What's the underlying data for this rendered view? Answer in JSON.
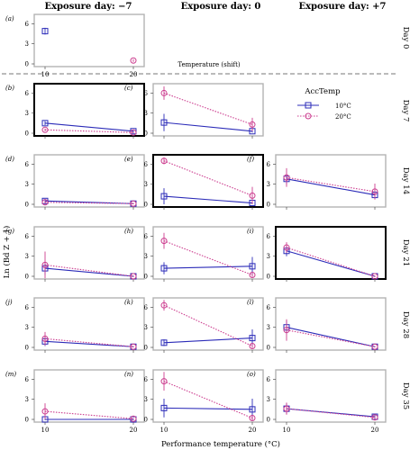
{
  "headers": [
    "Exposure day: −7",
    "Exposure day: 0",
    "Exposure day: +7"
  ],
  "day_labels": [
    "Day 0",
    "Day 7",
    "Day 14",
    "Day 21",
    "Day 28",
    "Day 35"
  ],
  "y_axis_label": "Ln (Bd Z + 1)",
  "x_axis_label": "Performance temperature (°C)",
  "day0_axis_label": "Temperature (shift)",
  "legend": {
    "title": "AccTemp",
    "entries": [
      {
        "name": "10°C",
        "color": "#2b2bb8",
        "marker": "square",
        "line": "solid"
      },
      {
        "name": "20°C",
        "color": "#cc3d8f",
        "marker": "circle",
        "line": "dotted"
      }
    ]
  },
  "colors": {
    "blue": "#2b2bb8",
    "magenta": "#cc3d8f",
    "frame_grey": "#b3b3b3",
    "frame_black": "#000000"
  },
  "chart_data": [
    {
      "panel": "a",
      "label": "(a)",
      "row": "Day 0",
      "col": "Exposure day: −7",
      "type": "scatter",
      "x_categories": [
        "10",
        "20"
      ],
      "yticks": [
        0,
        3,
        6
      ],
      "ylim": [
        0,
        7
      ],
      "frame": "grey",
      "series": [
        {
          "name": "10°C",
          "points": [
            [
              10,
              4.9,
              0.5
            ]
          ]
        },
        {
          "name": "20°C",
          "points": [
            [
              20,
              0.5,
              0.2
            ]
          ]
        }
      ]
    },
    {
      "panel": "b",
      "label": "(b)",
      "row": "Day 7",
      "col": "Exposure day: −7",
      "type": "line",
      "x": [
        10,
        20
      ],
      "yticks": [
        0,
        3,
        6
      ],
      "ylim": [
        0,
        7
      ],
      "frame": "black",
      "series": [
        {
          "name": "10°C",
          "y": [
            1.5,
            0.3
          ],
          "err": [
            0.3,
            0.1
          ]
        },
        {
          "name": "20°C",
          "y": [
            0.5,
            0.1
          ],
          "err": [
            0.2,
            0.1
          ]
        }
      ]
    },
    {
      "panel": "c",
      "label": "(c)",
      "row": "Day 7",
      "col": "Exposure day: 0",
      "type": "line",
      "x": [
        10,
        20
      ],
      "yticks": [
        0,
        3,
        6
      ],
      "ylim": [
        0,
        7
      ],
      "frame": "grey",
      "series": [
        {
          "name": "10°C",
          "y": [
            1.6,
            0.3
          ],
          "err": [
            1.3,
            0.2
          ]
        },
        {
          "name": "20°C",
          "y": [
            6.0,
            1.3
          ],
          "err": [
            1.0,
            1.0
          ]
        }
      ]
    },
    {
      "panel": "d",
      "label": "(d)",
      "row": "Day 14",
      "col": "Exposure day: −7",
      "type": "line",
      "x": [
        10,
        20
      ],
      "yticks": [
        0,
        3,
        6
      ],
      "ylim": [
        0,
        7
      ],
      "frame": "grey",
      "series": [
        {
          "name": "10°C",
          "y": [
            0.5,
            0.1
          ],
          "err": [
            0.3,
            0.1
          ]
        },
        {
          "name": "20°C",
          "y": [
            0.3,
            0.1
          ],
          "err": [
            0.2,
            0.1
          ]
        }
      ]
    },
    {
      "panel": "e",
      "label": "(e)",
      "row": "Day 14",
      "col": "Exposure day: 0",
      "type": "line",
      "x": [
        10,
        20
      ],
      "yticks": [
        0,
        3,
        6
      ],
      "ylim": [
        0,
        7
      ],
      "frame": "black",
      "series": [
        {
          "name": "10°C",
          "y": [
            1.2,
            0.2
          ],
          "err": [
            1.2,
            0.2
          ]
        },
        {
          "name": "20°C",
          "y": [
            6.5,
            1.3
          ],
          "err": [
            0.5,
            1.3
          ]
        }
      ]
    },
    {
      "panel": "f",
      "label": "(f)",
      "row": "Day 14",
      "col": "Exposure day: +7",
      "type": "line",
      "x": [
        10,
        20
      ],
      "yticks": [
        0,
        3,
        6
      ],
      "ylim": [
        0,
        7
      ],
      "frame": "grey",
      "series": [
        {
          "name": "10°C",
          "y": [
            3.8,
            1.4
          ],
          "err": [
            0.8,
            0.6
          ]
        },
        {
          "name": "20°C",
          "y": [
            4.0,
            1.9
          ],
          "err": [
            1.4,
            1.2
          ]
        }
      ]
    },
    {
      "panel": "g",
      "label": "(g)",
      "row": "Day 21",
      "col": "Exposure day: −7",
      "type": "line",
      "x": [
        10,
        20
      ],
      "yticks": [
        0,
        3,
        6
      ],
      "ylim": [
        0,
        7
      ],
      "frame": "grey",
      "series": [
        {
          "name": "10°C",
          "y": [
            1.2,
            0.0
          ],
          "err": [
            1.0,
            0.1
          ]
        },
        {
          "name": "20°C",
          "y": [
            1.7,
            0.0
          ],
          "err": [
            2.0,
            0.1
          ]
        }
      ]
    },
    {
      "panel": "h",
      "label": "(h)",
      "row": "Day 21",
      "col": "Exposure day: 0",
      "type": "line",
      "x": [
        10,
        20
      ],
      "yticks": [
        0,
        3,
        6
      ],
      "ylim": [
        0,
        7
      ],
      "frame": "grey",
      "series": [
        {
          "name": "10°C",
          "y": [
            1.2,
            1.5
          ],
          "err": [
            0.9,
            1.4
          ]
        },
        {
          "name": "20°C",
          "y": [
            5.3,
            0.2
          ],
          "err": [
            1.2,
            0.3
          ]
        }
      ]
    },
    {
      "panel": "i",
      "label": "(i)",
      "row": "Day 21",
      "col": "Exposure day: +7",
      "type": "line",
      "x": [
        10,
        20
      ],
      "yticks": [
        0,
        3,
        6
      ],
      "ylim": [
        0,
        7
      ],
      "frame": "black",
      "series": [
        {
          "name": "10°C",
          "y": [
            3.8,
            0.0
          ],
          "err": [
            0.8,
            0.1
          ]
        },
        {
          "name": "20°C",
          "y": [
            4.3,
            0.0
          ],
          "err": [
            0.8,
            0.1
          ]
        }
      ]
    },
    {
      "panel": "j",
      "label": "(j)",
      "row": "Day 28",
      "col": "Exposure day: −7",
      "type": "line",
      "x": [
        10,
        20
      ],
      "yticks": [
        0,
        3,
        6
      ],
      "ylim": [
        0,
        7
      ],
      "frame": "grey",
      "series": [
        {
          "name": "10°C",
          "y": [
            0.9,
            0.1
          ],
          "err": [
            0.7,
            0.1
          ]
        },
        {
          "name": "20°C",
          "y": [
            1.3,
            0.1
          ],
          "err": [
            1.0,
            0.1
          ]
        }
      ]
    },
    {
      "panel": "k",
      "label": "(k)",
      "row": "Day 28",
      "col": "Exposure day: 0",
      "type": "line",
      "x": [
        10,
        20
      ],
      "yticks": [
        0,
        3,
        6
      ],
      "ylim": [
        0,
        7
      ],
      "frame": "grey",
      "series": [
        {
          "name": "10°C",
          "y": [
            0.7,
            1.4
          ],
          "err": [
            0.5,
            1.3
          ]
        },
        {
          "name": "20°C",
          "y": [
            6.3,
            0.2
          ],
          "err": [
            0.8,
            0.3
          ]
        }
      ]
    },
    {
      "panel": "l",
      "label": "(l)",
      "row": "Day 28",
      "col": "Exposure day: +7",
      "type": "line",
      "x": [
        10,
        20
      ],
      "yticks": [
        0,
        3,
        6
      ],
      "ylim": [
        0,
        7
      ],
      "frame": "grey",
      "series": [
        {
          "name": "10°C",
          "y": [
            3.0,
            0.1
          ],
          "err": [
            1.0,
            0.1
          ]
        },
        {
          "name": "20°C",
          "y": [
            2.6,
            0.1
          ],
          "err": [
            1.6,
            0.1
          ]
        }
      ]
    },
    {
      "panel": "m",
      "label": "(m)",
      "row": "Day 35",
      "col": "Exposure day: −7",
      "type": "line",
      "x": [
        10,
        20
      ],
      "yticks": [
        0,
        3,
        6
      ],
      "ylim": [
        0,
        7
      ],
      "frame": "grey",
      "series": [
        {
          "name": "10°C",
          "y": [
            0.0,
            0.0
          ],
          "err": [
            0.1,
            0.1
          ]
        },
        {
          "name": "20°C",
          "y": [
            1.2,
            0.1
          ],
          "err": [
            1.2,
            0.1
          ]
        }
      ]
    },
    {
      "panel": "n",
      "label": "(n)",
      "row": "Day 35",
      "col": "Exposure day: 0",
      "type": "line",
      "x": [
        10,
        20
      ],
      "yticks": [
        0,
        3,
        6
      ],
      "ylim": [
        0,
        7
      ],
      "frame": "grey",
      "series": [
        {
          "name": "10°C",
          "y": [
            1.7,
            1.5
          ],
          "err": [
            1.4,
            1.6
          ]
        },
        {
          "name": "20°C",
          "y": [
            5.7,
            0.2
          ],
          "err": [
            1.4,
            0.3
          ]
        }
      ]
    },
    {
      "panel": "o",
      "label": "(o)",
      "row": "Day 35",
      "col": "Exposure day: +7",
      "type": "line",
      "x": [
        10,
        20
      ],
      "yticks": [
        0,
        3,
        6
      ],
      "ylim": [
        0,
        7
      ],
      "frame": "grey",
      "series": [
        {
          "name": "10°C",
          "y": [
            1.6,
            0.4
          ],
          "err": [
            0.8,
            0.3
          ]
        },
        {
          "name": "20°C",
          "y": [
            1.6,
            0.3
          ],
          "err": [
            0.9,
            0.2
          ]
        }
      ]
    }
  ]
}
